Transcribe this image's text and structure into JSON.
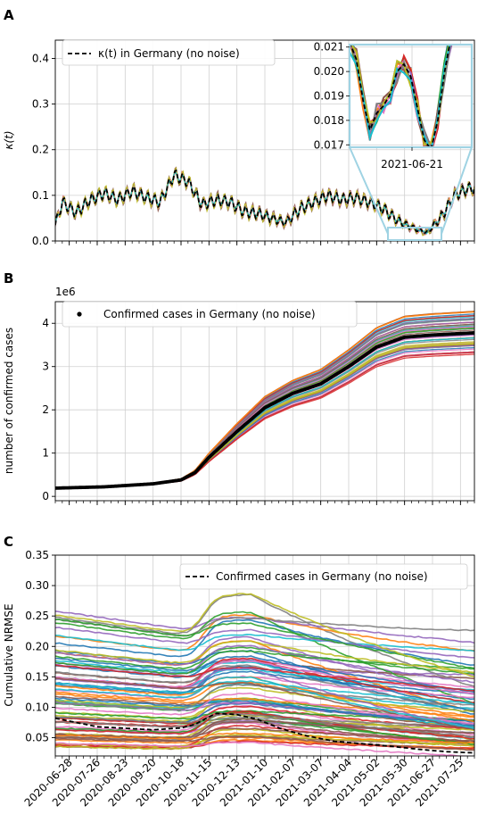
{
  "panels": [
    {
      "letter": "A",
      "ylabel": "κ(t)",
      "legend": "κ(t) in Germany (no noise)",
      "yticks": [
        "0.0",
        "0.1",
        "0.2",
        "0.3",
        "0.4"
      ],
      "inset": {
        "yticks": [
          "0.017",
          "0.018",
          "0.019",
          "0.020",
          "0.021"
        ],
        "xtick": "2021-06-21"
      }
    },
    {
      "letter": "B",
      "ylabel": "number of confirmed cases",
      "legend": "Confirmed cases in Germany (no noise)",
      "offset_label": "1e6",
      "yticks": [
        "0",
        "1",
        "2",
        "3",
        "4"
      ]
    },
    {
      "letter": "C",
      "ylabel": "Cumulative NRMSE",
      "legend": "Confirmed cases in Germany (no noise)",
      "yticks": [
        "0.05",
        "0.10",
        "0.15",
        "0.20",
        "0.25",
        "0.30",
        "0.35"
      ]
    }
  ],
  "xtick_labels": [
    "2020-06-28",
    "2020-07-26",
    "2020-08-23",
    "2020-09-20",
    "2020-10-18",
    "2020-11-15",
    "2020-12-13",
    "2021-01-10",
    "2021-02-07",
    "2021-03-07",
    "2021-04-04",
    "2021-05-02",
    "2021-05-30",
    "2021-06-27",
    "2021-07-25"
  ],
  "chart_data": [
    {
      "type": "line",
      "title": "",
      "xlabel": "",
      "ylabel": "κ(t)",
      "ylim": [
        0,
        0.44
      ],
      "x_range": [
        "2020-06-14",
        "2021-08-08"
      ],
      "grid": true,
      "legend_position": "top-left",
      "series": [
        {
          "name": "κ(t) in Germany (no noise)",
          "style": "dashed-black",
          "x": [
            "2020-06-14",
            "2020-06-21",
            "2020-07-05",
            "2020-07-19",
            "2020-08-02",
            "2020-08-16",
            "2020-08-30",
            "2020-09-13",
            "2020-09-27",
            "2020-10-11",
            "2020-10-25",
            "2020-11-08",
            "2020-11-22",
            "2020-12-06",
            "2020-12-20",
            "2021-01-03",
            "2021-01-17",
            "2021-01-31",
            "2021-02-14",
            "2021-02-28",
            "2021-03-14",
            "2021-03-28",
            "2021-04-11",
            "2021-04-25",
            "2021-05-09",
            "2021-05-23",
            "2021-06-06",
            "2021-06-21",
            "2021-07-05",
            "2021-07-19",
            "2021-08-02"
          ],
          "y": [
            0.035,
            0.085,
            0.062,
            0.09,
            0.105,
            0.09,
            0.11,
            0.095,
            0.085,
            0.145,
            0.13,
            0.08,
            0.09,
            0.085,
            0.065,
            0.06,
            0.05,
            0.04,
            0.07,
            0.085,
            0.1,
            0.09,
            0.095,
            0.085,
            0.07,
            0.045,
            0.03,
            0.018,
            0.05,
            0.1,
            0.115
          ]
        }
      ]
    },
    {
      "type": "line",
      "title": "",
      "xlabel": "",
      "ylabel": "number of confirmed cases",
      "y_unit_multiplier": "1e6",
      "ylim": [
        -0.1,
        4.5
      ],
      "x_range": [
        "2020-06-14",
        "2021-08-08"
      ],
      "grid": true,
      "legend_position": "top-left",
      "series": [
        {
          "name": "Confirmed cases in Germany (no noise)",
          "style": "black-dots",
          "x": [
            "2020-06-14",
            "2020-08-02",
            "2020-09-20",
            "2020-10-18",
            "2020-11-01",
            "2020-11-15",
            "2020-12-13",
            "2021-01-10",
            "2021-02-07",
            "2021-03-07",
            "2021-04-04",
            "2021-05-02",
            "2021-05-30",
            "2021-06-27",
            "2021-08-08"
          ],
          "y": [
            0.19,
            0.22,
            0.29,
            0.38,
            0.55,
            0.9,
            1.5,
            2.05,
            2.38,
            2.6,
            3.0,
            3.45,
            3.68,
            3.73,
            3.78
          ]
        }
      ]
    },
    {
      "type": "line",
      "title": "",
      "xlabel": "",
      "ylabel": "Cumulative NRMSE",
      "ylim": [
        0.02,
        0.35
      ],
      "x_range": [
        "2020-06-14",
        "2021-08-08"
      ],
      "grid": true,
      "legend_position": "top-right",
      "series": [
        {
          "name": "Confirmed cases in Germany (no noise)",
          "style": "dashed-black",
          "x": [
            "2020-06-14",
            "2020-07-26",
            "2020-09-20",
            "2020-10-18",
            "2020-11-01",
            "2020-11-22",
            "2020-12-13",
            "2021-01-03",
            "2021-01-24",
            "2021-02-21",
            "2021-03-21",
            "2021-04-18",
            "2021-05-16",
            "2021-06-13",
            "2021-07-11",
            "2021-08-08"
          ],
          "y": [
            0.082,
            0.068,
            0.063,
            0.066,
            0.072,
            0.09,
            0.088,
            0.08,
            0.066,
            0.053,
            0.044,
            0.04,
            0.036,
            0.031,
            0.027,
            0.025
          ]
        }
      ]
    }
  ]
}
